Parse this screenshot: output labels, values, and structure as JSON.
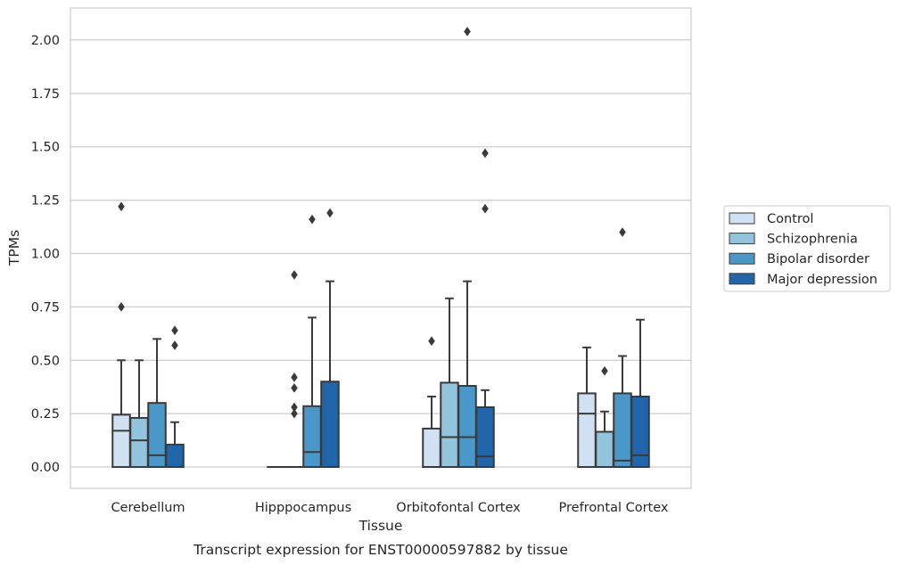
{
  "caption": "Transcript expression for ENST00000597882 by tissue",
  "chart_data": {
    "type": "box",
    "xlabel": "Tissue",
    "ylabel": "TPMs",
    "ylim": [
      -0.1,
      2.15
    ],
    "yticks": [
      0.0,
      0.25,
      0.5,
      0.75,
      1.0,
      1.25,
      1.5,
      1.75,
      2.0
    ],
    "ytick_labels": [
      "0.00",
      "0.25",
      "0.50",
      "0.75",
      "1.00",
      "1.25",
      "1.50",
      "1.75",
      "2.00"
    ],
    "grid": "horizontal",
    "legend_position": "right",
    "categories": [
      "Cerebellum",
      "Hipppocampus",
      "Orbitofontal Cortex",
      "Prefrontal Cortex"
    ],
    "series": [
      {
        "name": "Control",
        "color": "#cfe1f2",
        "boxes": [
          {
            "low": 0.0,
            "q1": 0.0,
            "median": 0.17,
            "q3": 0.245,
            "high": 0.5,
            "outliers": [
              0.75,
              1.22
            ]
          },
          {
            "low": 0.0,
            "q1": 0.0,
            "median": 0.0,
            "q3": 0.0,
            "high": 0.0,
            "outliers": []
          },
          {
            "low": 0.0,
            "q1": 0.0,
            "median": 0.0,
            "q3": 0.18,
            "high": 0.33,
            "outliers": [
              0.59
            ]
          },
          {
            "low": 0.0,
            "q1": 0.0,
            "median": 0.25,
            "q3": 0.345,
            "high": 0.56,
            "outliers": []
          }
        ]
      },
      {
        "name": "Schizophrenia",
        "color": "#93c4de",
        "boxes": [
          {
            "low": 0.0,
            "q1": 0.0,
            "median": 0.125,
            "q3": 0.23,
            "high": 0.5,
            "outliers": []
          },
          {
            "low": 0.0,
            "q1": 0.0,
            "median": 0.0,
            "q3": 0.0,
            "high": 0.0,
            "outliers": [
              0.25,
              0.28,
              0.37,
              0.42,
              0.9
            ]
          },
          {
            "low": 0.0,
            "q1": 0.0,
            "median": 0.14,
            "q3": 0.395,
            "high": 0.79,
            "outliers": []
          },
          {
            "low": 0.0,
            "q1": 0.0,
            "median": 0.0,
            "q3": 0.165,
            "high": 0.26,
            "outliers": [
              0.45
            ]
          }
        ]
      },
      {
        "name": "Bipolar disorder",
        "color": "#4a98c9",
        "boxes": [
          {
            "low": 0.0,
            "q1": 0.0,
            "median": 0.055,
            "q3": 0.3,
            "high": 0.6,
            "outliers": []
          },
          {
            "low": 0.0,
            "q1": 0.0,
            "median": 0.07,
            "q3": 0.285,
            "high": 0.7,
            "outliers": [
              1.16
            ]
          },
          {
            "low": 0.0,
            "q1": 0.0,
            "median": 0.14,
            "q3": 0.38,
            "high": 0.87,
            "outliers": [
              2.04
            ]
          },
          {
            "low": 0.0,
            "q1": 0.0,
            "median": 0.03,
            "q3": 0.345,
            "high": 0.52,
            "outliers": [
              1.1
            ]
          }
        ]
      },
      {
        "name": "Major depression",
        "color": "#2165ab",
        "boxes": [
          {
            "low": 0.0,
            "q1": 0.0,
            "median": 0.0,
            "q3": 0.105,
            "high": 0.21,
            "outliers": [
              0.57,
              0.64
            ]
          },
          {
            "low": 0.0,
            "q1": 0.0,
            "median": 0.0,
            "q3": 0.4,
            "high": 0.87,
            "outliers": [
              1.19
            ]
          },
          {
            "low": 0.0,
            "q1": 0.0,
            "median": 0.05,
            "q3": 0.28,
            "high": 0.36,
            "outliers": [
              1.21,
              1.47
            ]
          },
          {
            "low": 0.0,
            "q1": 0.0,
            "median": 0.055,
            "q3": 0.33,
            "high": 0.69,
            "outliers": []
          }
        ]
      }
    ]
  }
}
